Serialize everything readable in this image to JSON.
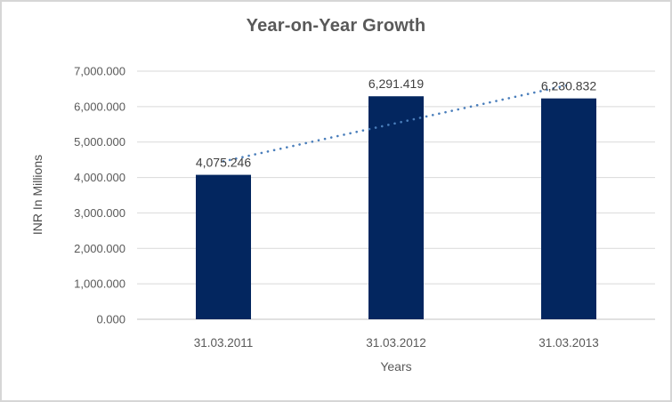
{
  "chart_data": {
    "type": "bar",
    "title": "Year-on-Year Growth",
    "xlabel": "Years",
    "ylabel": "INR In Millions",
    "categories": [
      "31.03.2011",
      "31.03.2012",
      "31.03.2013"
    ],
    "values": [
      4075.246,
      6291.419,
      6230.832
    ],
    "value_labels": [
      "4,075.246",
      "6,291.419",
      "6,230.832"
    ],
    "y_ticks": [
      0,
      1000,
      2000,
      3000,
      4000,
      5000,
      6000,
      7000
    ],
    "y_tick_labels": [
      "0.000",
      "1,000.000",
      "2,000.000",
      "3,000.000",
      "4,000.000",
      "5,000.000",
      "6,000.000",
      "7,000.000"
    ],
    "ylim": [
      0,
      7000
    ],
    "grid": true,
    "legend": "none",
    "trendline": {
      "type": "linear",
      "style": "dotted"
    }
  },
  "colors": {
    "bar": "#03265f",
    "trendline": "#4a7ebb",
    "gridline": "#d9d9d9",
    "axis_line": "#c3c3c3",
    "axis_text": "#595959",
    "data_label": "#404040",
    "title_text": "#595959",
    "border": "#d6d6d6",
    "background": "#ffffff"
  }
}
